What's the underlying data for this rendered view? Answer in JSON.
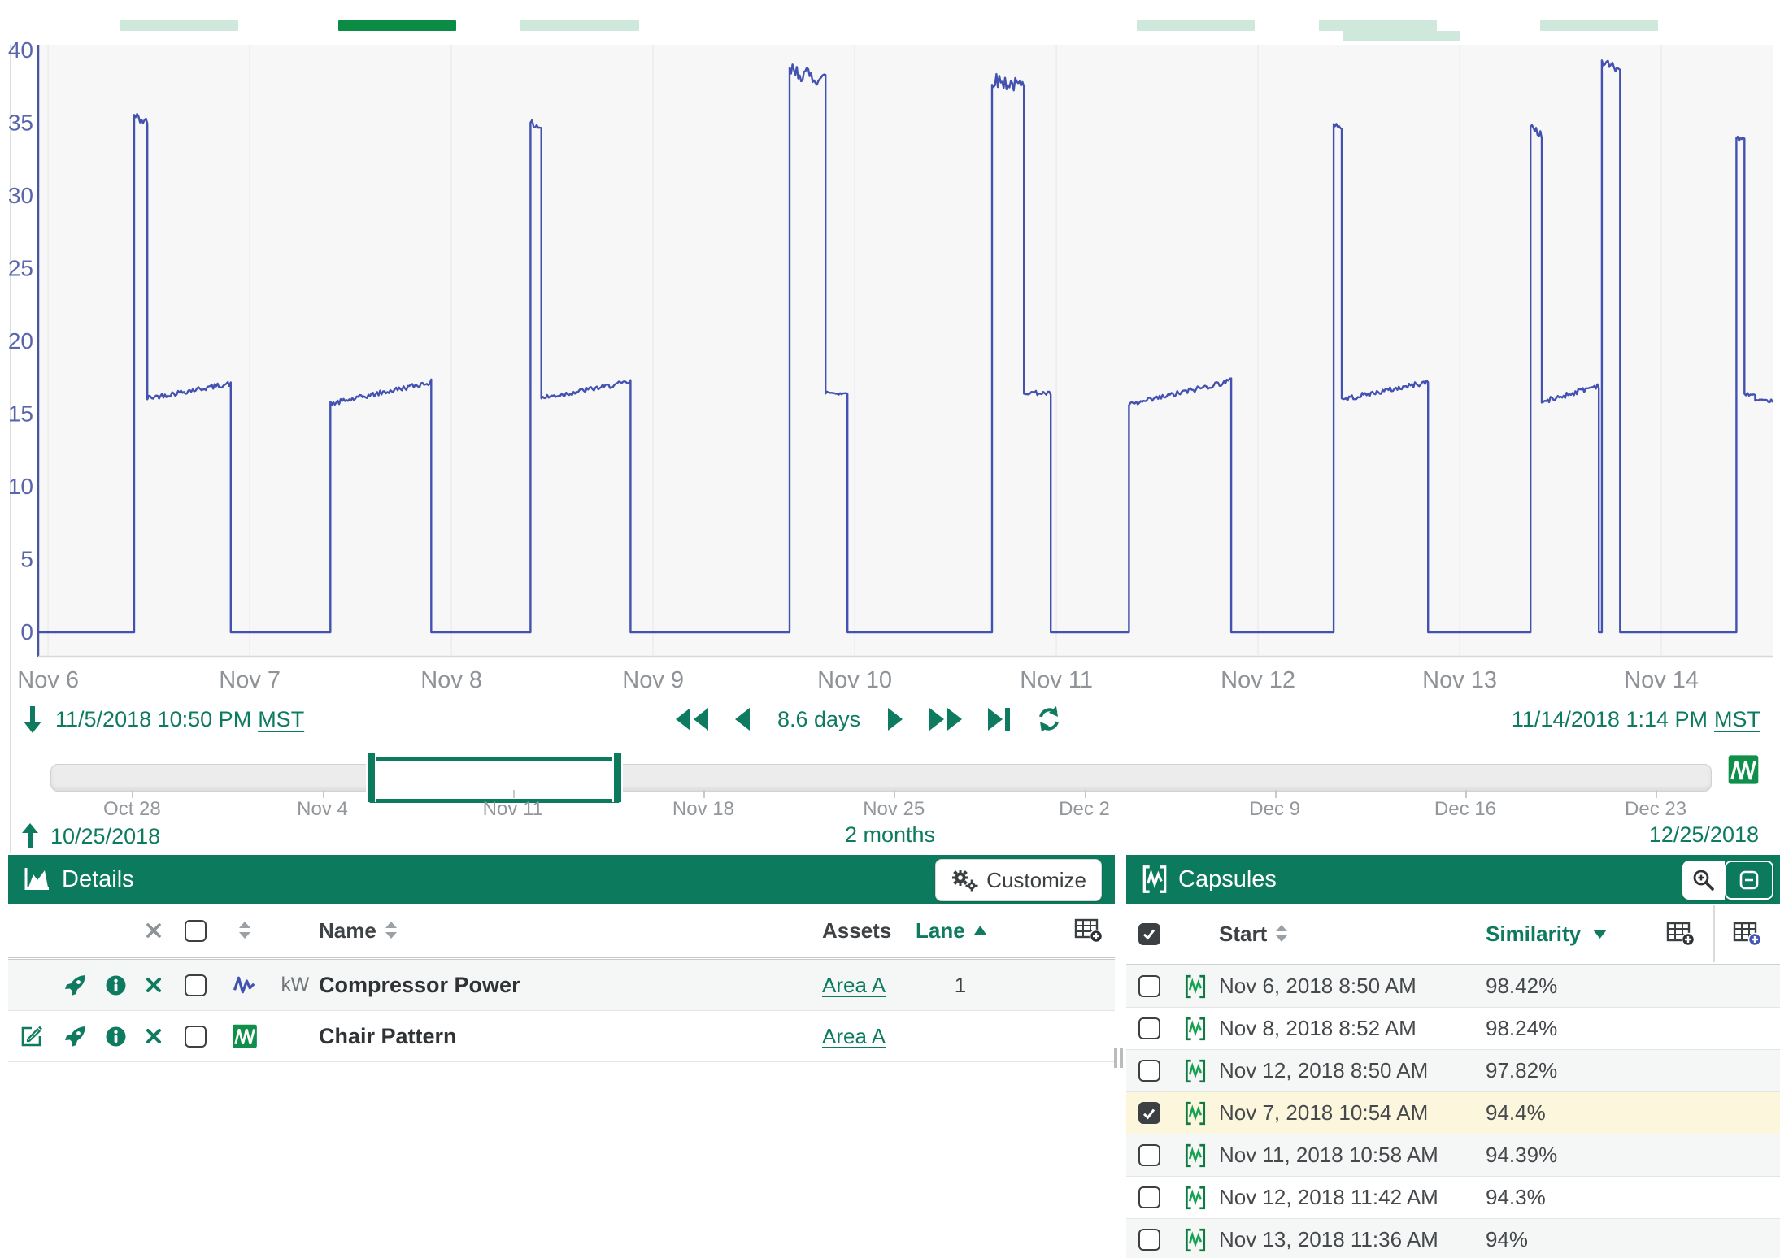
{
  "chart_data": {
    "type": "line",
    "title": "",
    "xlabel": "",
    "ylabel": "",
    "ylim": [
      0,
      40
    ],
    "y_ticks": [
      0,
      5,
      10,
      15,
      20,
      25,
      30,
      35,
      40
    ],
    "x_domain_days": [
      -0.049,
      8.552
    ],
    "x_ticks": [
      {
        "label": "Nov 6",
        "d": 0
      },
      {
        "label": "Nov 7",
        "d": 1
      },
      {
        "label": "Nov 8",
        "d": 2
      },
      {
        "label": "Nov 9",
        "d": 3
      },
      {
        "label": "Nov 10",
        "d": 4
      },
      {
        "label": "Nov 11",
        "d": 5
      },
      {
        "label": "Nov 12",
        "d": 6
      },
      {
        "label": "Nov 13",
        "d": 7
      },
      {
        "label": "Nov 14",
        "d": 8
      }
    ],
    "series": [
      {
        "name": "Compressor Power",
        "unit": "kW",
        "color": "#4352b0",
        "segments": [
          {
            "d0": -0.049,
            "d1": 0.427,
            "v0": 0,
            "v1": 0,
            "noise": 0
          },
          {
            "d0": 0.427,
            "d1": 0.492,
            "v0": 35.5,
            "v1": 35.0,
            "noise": 0.35
          },
          {
            "d0": 0.492,
            "d1": 0.906,
            "v0": 16.1,
            "v1": 17.1,
            "noise": 0.18
          },
          {
            "d0": 0.906,
            "d1": 1.4,
            "v0": 0,
            "v1": 0,
            "noise": 0
          },
          {
            "d0": 1.4,
            "d1": 1.9,
            "v0": 15.7,
            "v1": 17.2,
            "noise": 0.18
          },
          {
            "d0": 1.9,
            "d1": 2.392,
            "v0": 0,
            "v1": 0,
            "noise": 0
          },
          {
            "d0": 2.392,
            "d1": 2.446,
            "v0": 35.0,
            "v1": 34.7,
            "noise": 0.25
          },
          {
            "d0": 2.446,
            "d1": 2.888,
            "v0": 16.1,
            "v1": 17.2,
            "noise": 0.18
          },
          {
            "d0": 2.888,
            "d1": 3.677,
            "v0": 0,
            "v1": 0,
            "noise": 0
          },
          {
            "d0": 3.677,
            "d1": 3.855,
            "v0": 38.6,
            "v1": 38.0,
            "noise": 0.55
          },
          {
            "d0": 3.855,
            "d1": 3.964,
            "v0": 16.5,
            "v1": 16.4,
            "noise": 0.15
          },
          {
            "d0": 3.964,
            "d1": 4.681,
            "v0": 0,
            "v1": 0,
            "noise": 0
          },
          {
            "d0": 4.681,
            "d1": 4.839,
            "v0": 38.0,
            "v1": 37.5,
            "noise": 0.5
          },
          {
            "d0": 4.839,
            "d1": 4.972,
            "v0": 16.5,
            "v1": 16.4,
            "noise": 0.15
          },
          {
            "d0": 4.972,
            "d1": 5.36,
            "v0": 0,
            "v1": 0,
            "noise": 0
          },
          {
            "d0": 5.36,
            "d1": 5.867,
            "v0": 15.6,
            "v1": 17.3,
            "noise": 0.2
          },
          {
            "d0": 5.867,
            "d1": 6.375,
            "v0": 0,
            "v1": 0,
            "noise": 0
          },
          {
            "d0": 6.375,
            "d1": 6.415,
            "v0": 35.0,
            "v1": 34.7,
            "noise": 0.2
          },
          {
            "d0": 6.415,
            "d1": 6.843,
            "v0": 16.0,
            "v1": 17.2,
            "noise": 0.18
          },
          {
            "d0": 6.843,
            "d1": 7.351,
            "v0": 0,
            "v1": 0,
            "noise": 0
          },
          {
            "d0": 7.351,
            "d1": 7.407,
            "v0": 34.9,
            "v1": 34.1,
            "noise": 0.25
          },
          {
            "d0": 7.407,
            "d1": 7.69,
            "v0": 15.8,
            "v1": 17.0,
            "noise": 0.2
          },
          {
            "d0": 7.69,
            "d1": 7.705,
            "v0": 0,
            "v1": 0,
            "noise": 0
          },
          {
            "d0": 7.705,
            "d1": 7.795,
            "v0": 39.2,
            "v1": 38.7,
            "noise": 0.3
          },
          {
            "d0": 7.795,
            "d1": 8.372,
            "v0": 0,
            "v1": 0,
            "noise": 0
          },
          {
            "d0": 8.372,
            "d1": 8.412,
            "v0": 34.0,
            "v1": 33.8,
            "noise": 0.2
          },
          {
            "d0": 8.412,
            "d1": 8.465,
            "v0": 16.4,
            "v1": 16.3,
            "noise": 0.1
          },
          {
            "d0": 8.465,
            "d1": 8.552,
            "v0": 15.9,
            "v1": 15.9,
            "noise": 0.1
          }
        ]
      }
    ],
    "capsule_lane": [
      {
        "d0": 0.359,
        "d1": 0.944,
        "lane": 0,
        "selected": false
      },
      {
        "d0": 1.44,
        "d1": 2.025,
        "lane": 0,
        "selected": true
      },
      {
        "d0": 2.343,
        "d1": 2.932,
        "lane": 0,
        "selected": false
      },
      {
        "d0": 5.4,
        "d1": 5.985,
        "lane": 0,
        "selected": false
      },
      {
        "d0": 6.303,
        "d1": 6.888,
        "lane": 0,
        "selected": false
      },
      {
        "d0": 6.42,
        "d1": 7.005,
        "lane": 1,
        "selected": false
      },
      {
        "d0": 7.4,
        "d1": 7.985,
        "lane": 0,
        "selected": false
      }
    ]
  },
  "timebar": {
    "start_label": "11/5/2018 10:50 PM",
    "start_tz": "MST",
    "duration_label": "8.6 days",
    "end_label": "11/14/2018 1:14 PM",
    "end_tz": "MST"
  },
  "slider": {
    "range_start": "10/25/2018",
    "range_duration": "2 months",
    "range_end": "12/25/2018",
    "selection": [
      0.192,
      0.338
    ],
    "ticks": [
      {
        "label": "Oct 28",
        "f": 0.0492
      },
      {
        "label": "Nov 4",
        "f": 0.1639
      },
      {
        "label": "Nov 11",
        "f": 0.2787
      },
      {
        "label": "Nov 18",
        "f": 0.3934
      },
      {
        "label": "Nov 25",
        "f": 0.5082
      },
      {
        "label": "Dec 2",
        "f": 0.623
      },
      {
        "label": "Dec 9",
        "f": 0.7377
      },
      {
        "label": "Dec 16",
        "f": 0.8525
      },
      {
        "label": "Dec 23",
        "f": 0.9672
      }
    ]
  },
  "details": {
    "title": "Details",
    "customize_label": "Customize",
    "columns": {
      "name": "Name",
      "assets": "Assets",
      "lane": "Lane"
    },
    "rows": [
      {
        "name": "Compressor Power",
        "unit": "kW",
        "asset": "Area A",
        "lane": "1",
        "type": "signal"
      },
      {
        "name": "Chair Pattern",
        "unit": "",
        "asset": "Area A",
        "lane": "",
        "type": "condition"
      }
    ]
  },
  "capsules": {
    "title": "Capsules",
    "columns": {
      "start": "Start",
      "similarity": "Similarity"
    },
    "rows": [
      {
        "start": "Nov 6, 2018 8:50 AM",
        "similarity": "98.42%",
        "checked": false,
        "selected": false
      },
      {
        "start": "Nov 8, 2018 8:52 AM",
        "similarity": "98.24%",
        "checked": false,
        "selected": false
      },
      {
        "start": "Nov 12, 2018 8:50 AM",
        "similarity": "97.82%",
        "checked": false,
        "selected": false
      },
      {
        "start": "Nov 7, 2018 10:54 AM",
        "similarity": "94.4%",
        "checked": true,
        "selected": true
      },
      {
        "start": "Nov 11, 2018 10:58 AM",
        "similarity": "94.39%",
        "checked": false,
        "selected": false
      },
      {
        "start": "Nov 12, 2018 11:42 AM",
        "similarity": "94.3%",
        "checked": false,
        "selected": false
      },
      {
        "start": "Nov 13, 2018 11:36 AM",
        "similarity": "94%",
        "checked": false,
        "selected": false
      }
    ]
  }
}
